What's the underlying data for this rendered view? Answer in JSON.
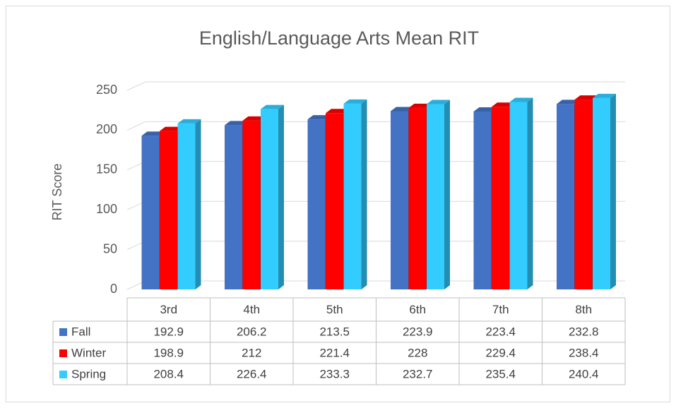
{
  "chart_data": {
    "type": "bar",
    "title": "English/Language Arts Mean RIT",
    "y_label": "RIT Score",
    "categories": [
      "3rd",
      "4th",
      "5th",
      "6th",
      "7th",
      "8th"
    ],
    "series": [
      {
        "name": "Fall",
        "color": "#4472c4",
        "values": [
          192.9,
          206.2,
          213.5,
          223.9,
          223.4,
          232.8
        ]
      },
      {
        "name": "Winter",
        "color": "#ff0000",
        "values": [
          198.9,
          212,
          221.4,
          228,
          229.4,
          238.4
        ]
      },
      {
        "name": "Spring",
        "color": "#33ccff",
        "values": [
          208.4,
          226.4,
          233.3,
          232.7,
          235.4,
          240.4
        ]
      }
    ],
    "ylim": [
      0,
      250
    ],
    "yticks": [
      0,
      50,
      100,
      150,
      200,
      250
    ],
    "grid": true,
    "data_table": true
  }
}
